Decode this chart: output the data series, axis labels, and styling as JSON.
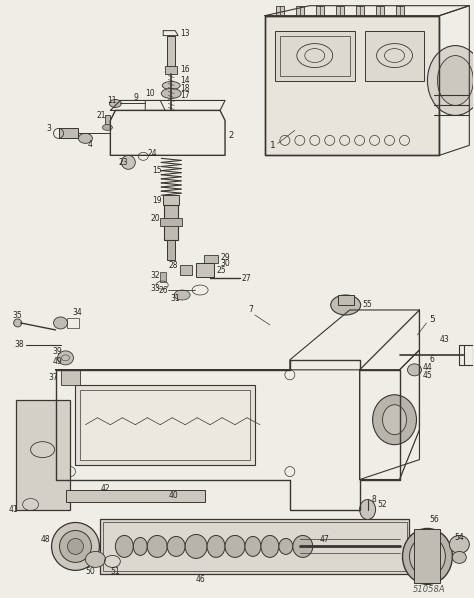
{
  "background_color": "#f0ede6",
  "line_color": "#3a3530",
  "label_color": "#2a2520",
  "fig_width": 4.74,
  "fig_height": 5.98,
  "dpi": 100,
  "credit_text": "51058A",
  "label_fontsize": 5.5
}
